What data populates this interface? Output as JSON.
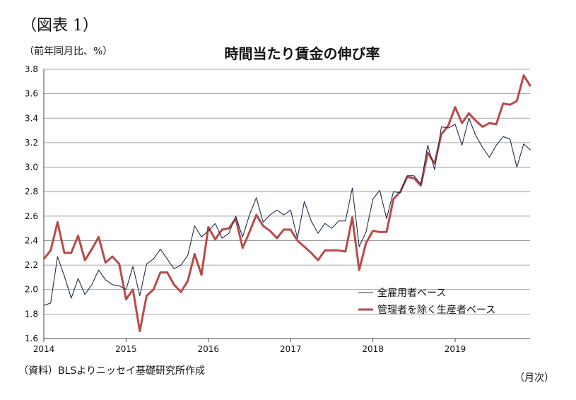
{
  "figure_label": "（図表 1）",
  "unit_label": "（前年同月比、%）",
  "source_note": "（資料）BLSよりニッセイ基礎研究所作成",
  "x_unit_note": "（月次）",
  "chart_data": {
    "type": "line",
    "title": "時間当たり賃金の伸び率",
    "xlabel": "",
    "ylabel": "",
    "ylim": [
      1.6,
      3.8
    ],
    "y_ticks": [
      "1.6",
      "1.8",
      "2.0",
      "2.2",
      "2.4",
      "2.6",
      "2.8",
      "3.0",
      "3.2",
      "3.4",
      "3.6",
      "3.8"
    ],
    "x_tick_labels": [
      "2014",
      "2015",
      "2016",
      "2017",
      "2018",
      "2019"
    ],
    "x_start": "2014-01",
    "grid": true,
    "legend_position": "lower-right",
    "series": [
      {
        "name": "全雇用者ベース",
        "color": "#1f2d4a",
        "style": "thin",
        "values": [
          1.87,
          1.89,
          2.27,
          2.11,
          1.93,
          2.09,
          1.96,
          2.04,
          2.16,
          2.08,
          2.04,
          2.03,
          2.0,
          2.19,
          1.95,
          2.21,
          2.25,
          2.33,
          2.25,
          2.17,
          2.2,
          2.28,
          2.52,
          2.43,
          2.48,
          2.54,
          2.42,
          2.46,
          2.6,
          2.43,
          2.61,
          2.75,
          2.55,
          2.61,
          2.65,
          2.61,
          2.65,
          2.42,
          2.72,
          2.56,
          2.46,
          2.54,
          2.5,
          2.56,
          2.56,
          2.83,
          2.35,
          2.47,
          2.74,
          2.81,
          2.58,
          2.8,
          2.79,
          2.93,
          2.93,
          2.86,
          3.18,
          2.98,
          3.33,
          3.32,
          3.35,
          3.18,
          3.4,
          3.26,
          3.16,
          3.08,
          3.18,
          3.25,
          3.23,
          3.0,
          3.19,
          3.14
        ]
      },
      {
        "name": "管理者を除く生産者ベース",
        "color": "#b94a48",
        "style": "thick",
        "values": [
          2.25,
          2.32,
          2.55,
          2.3,
          2.3,
          2.44,
          2.24,
          2.33,
          2.43,
          2.22,
          2.27,
          2.21,
          1.92,
          2.0,
          1.66,
          1.95,
          2.0,
          2.14,
          2.14,
          2.04,
          1.98,
          2.07,
          2.29,
          2.12,
          2.51,
          2.41,
          2.49,
          2.5,
          2.58,
          2.34,
          2.47,
          2.61,
          2.52,
          2.48,
          2.42,
          2.49,
          2.49,
          2.4,
          2.35,
          2.3,
          2.24,
          2.32,
          2.32,
          2.32,
          2.31,
          2.59,
          2.16,
          2.38,
          2.48,
          2.47,
          2.47,
          2.74,
          2.8,
          2.92,
          2.91,
          2.85,
          3.12,
          3.03,
          3.27,
          3.34,
          3.49,
          3.36,
          3.44,
          3.38,
          3.33,
          3.36,
          3.35,
          3.52,
          3.51,
          3.54,
          3.75,
          3.66
        ]
      }
    ]
  }
}
